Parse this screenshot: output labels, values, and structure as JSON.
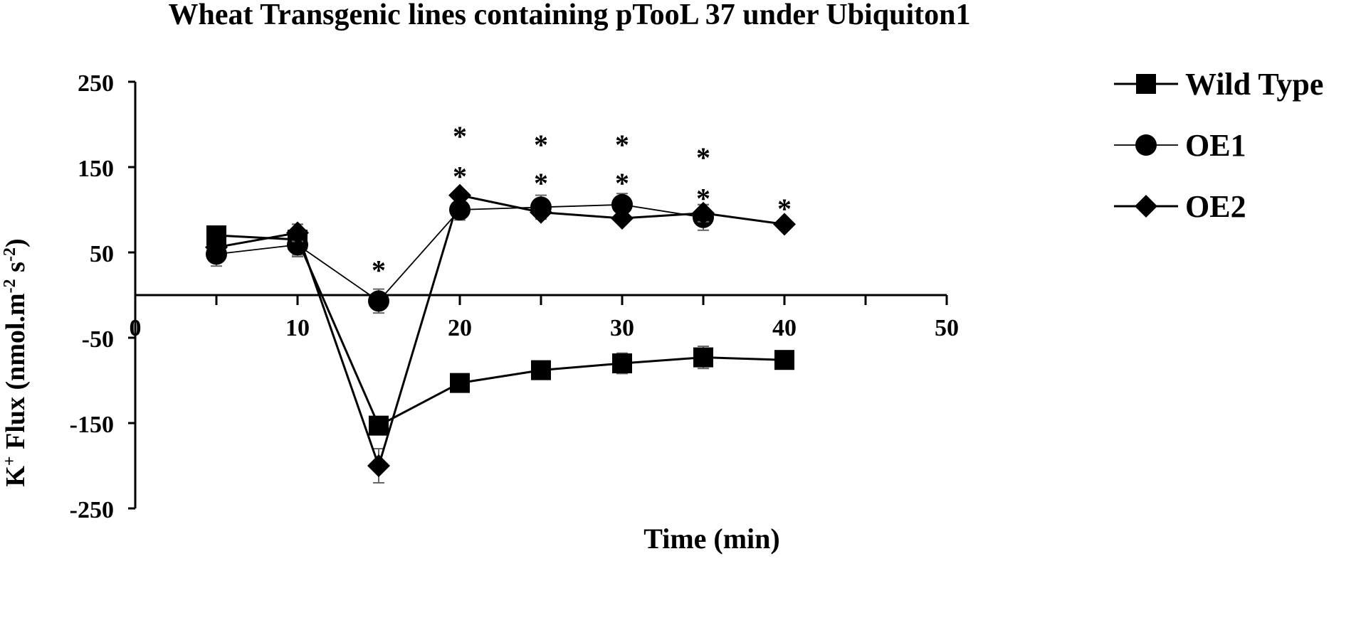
{
  "chart_data": {
    "type": "line",
    "title": "Wheat Transgenic lines containing pTooL 37 under Ubiquiton1",
    "xlabel": "Time (min)",
    "ylabel_parts": [
      "K",
      "+",
      " Flux (nmol.m",
      "-2",
      " s",
      "-2",
      ")"
    ],
    "xlim": [
      0,
      50
    ],
    "ylim": [
      -250,
      250
    ],
    "x_ticks": [
      0,
      10,
      20,
      30,
      40,
      50
    ],
    "x_tick_labels": [
      "0",
      "10",
      "20",
      "30",
      "40",
      "50"
    ],
    "y_ticks": [
      250,
      150,
      50,
      -50,
      -150,
      -250
    ],
    "y_tick_labels": [
      "250",
      "150",
      "50",
      "-50",
      "-150",
      "-250"
    ],
    "legend_position": "top-right",
    "series": [
      {
        "name": "Wild Type",
        "marker": "square",
        "x": [
          5,
          10,
          15,
          20,
          25,
          30,
          35,
          40
        ],
        "y": [
          70,
          65,
          -153,
          -103,
          -88,
          -80,
          -73,
          -76
        ],
        "err": [
          10,
          18,
          0,
          10,
          10,
          12,
          13,
          0
        ]
      },
      {
        "name": "OE1",
        "marker": "circle",
        "x": [
          5,
          10,
          15,
          20,
          25,
          30,
          35
        ],
        "y": [
          48,
          59,
          -7,
          100,
          103,
          106,
          91
        ],
        "err": [
          14,
          14,
          14,
          12,
          14,
          13,
          15
        ]
      },
      {
        "name": "OE2",
        "marker": "diamond",
        "x": [
          5,
          10,
          15,
          20,
          25,
          30,
          35,
          40
        ],
        "y": [
          56,
          73,
          -200,
          117,
          97,
          90,
          96,
          83
        ],
        "err": [
          0,
          10,
          20,
          0,
          0,
          0,
          10,
          0
        ]
      }
    ],
    "annotations": [
      {
        "text": "*",
        "x": 15,
        "y": 33
      },
      {
        "text": "*",
        "x": 20,
        "y": 190
      },
      {
        "text": "*",
        "x": 20,
        "y": 143
      },
      {
        "text": "*",
        "x": 25,
        "y": 180
      },
      {
        "text": "*",
        "x": 25,
        "y": 135
      },
      {
        "text": "*",
        "x": 30,
        "y": 180
      },
      {
        "text": "*",
        "x": 30,
        "y": 135
      },
      {
        "text": "*",
        "x": 35,
        "y": 165
      },
      {
        "text": "*",
        "x": 35,
        "y": 117
      },
      {
        "text": "*",
        "x": 40,
        "y": 105
      }
    ]
  }
}
